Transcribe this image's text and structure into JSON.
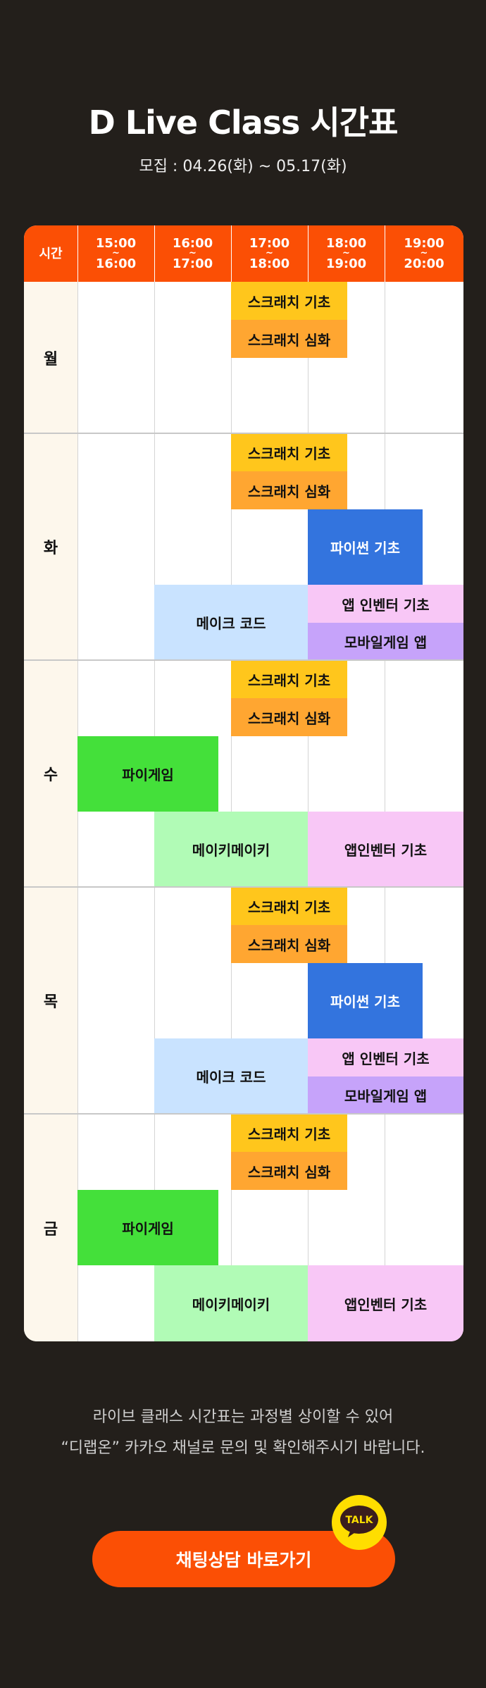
{
  "header": {
    "title": "D Live Class 시간표",
    "period": "모집 : 04.26(화) ~ 05.17(화)"
  },
  "schedule": {
    "corner_label": "시간",
    "time_slots": [
      {
        "start": "15:00",
        "sep": "~",
        "end": "16:00"
      },
      {
        "start": "16:00",
        "sep": "~",
        "end": "17:00"
      },
      {
        "start": "17:00",
        "sep": "~",
        "end": "18:00"
      },
      {
        "start": "18:00",
        "sep": "~",
        "end": "19:00"
      },
      {
        "start": "19:00",
        "sep": "~",
        "end": "20:00"
      }
    ],
    "days": [
      "월",
      "화",
      "수",
      "목",
      "금"
    ],
    "classes": {
      "scratch_basic": "스크래치 기초",
      "scratch_advanced": "스크래치 심화",
      "python_basic": "파이썬 기초",
      "app_inventor_basic": "앱 인벤터 기초",
      "mobile_game_app": "모바일게임 앱",
      "make_code": "메이크 코드",
      "pi_game": "파이게임",
      "makey_makey": "메이키메이키",
      "app_inventor_basic_2": "앱인벤터 기초"
    },
    "colors": {
      "header": "#fb4f05",
      "scratch_basic": "#ffc61c",
      "scratch_advanced": "#ffa631",
      "python_basic": "#3374de",
      "app_inventor": "#f8c7f6",
      "mobile_game_app": "#c6a3fa",
      "make_code": "#c9e3ff",
      "pi_game": "#44e03a",
      "makey_makey": "#b1fbb6"
    }
  },
  "notice": {
    "line1": "라이브 클래스 시간표는 과정별 상이할 수 있어",
    "line2": "“디랩온” 카카오 채널로 문의 및 확인해주시기 바랍니다."
  },
  "cta": {
    "label": "채팅상담 바로가기",
    "badge": "TALK",
    "icon": "kakao-talk-icon"
  }
}
